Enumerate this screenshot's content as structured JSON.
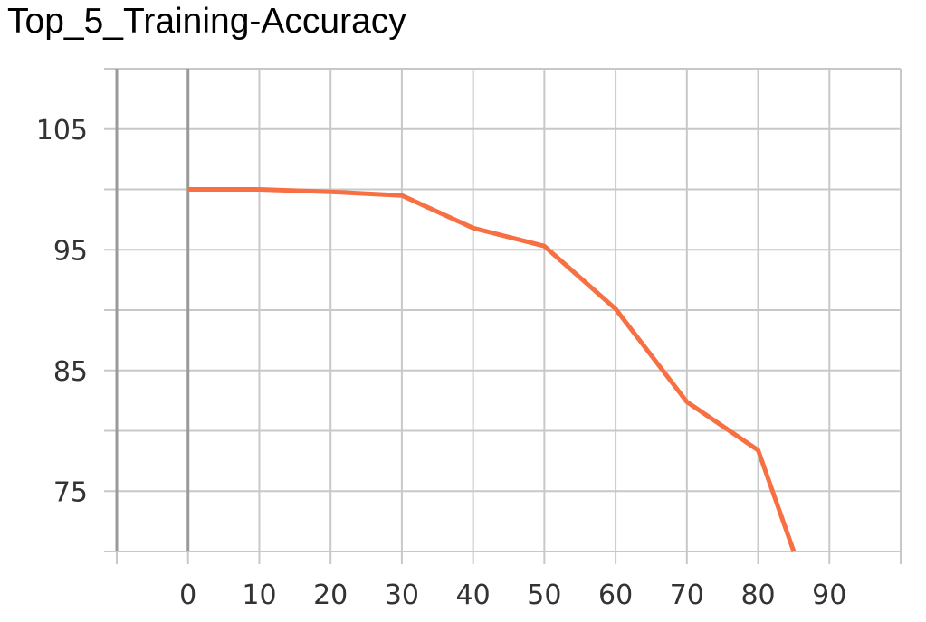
{
  "chart_data": {
    "type": "line",
    "title": "Top_5_Training-Accuracy",
    "xlabel": "",
    "ylabel": "",
    "xlim": [
      -10,
      100
    ],
    "ylim": [
      70,
      110
    ],
    "x_ticks": [
      0,
      10,
      20,
      30,
      40,
      50,
      60,
      70,
      80,
      90
    ],
    "y_ticks": [
      75,
      85,
      95,
      105
    ],
    "grid": true,
    "series": [
      {
        "color": "#f77044",
        "x": [
          0,
          10,
          20,
          30,
          40,
          50,
          60,
          70,
          80,
          85
        ],
        "y": [
          100,
          100,
          99.8,
          99.5,
          96.8,
          95.3,
          90.1,
          82.4,
          78.4,
          70
        ]
      }
    ]
  }
}
